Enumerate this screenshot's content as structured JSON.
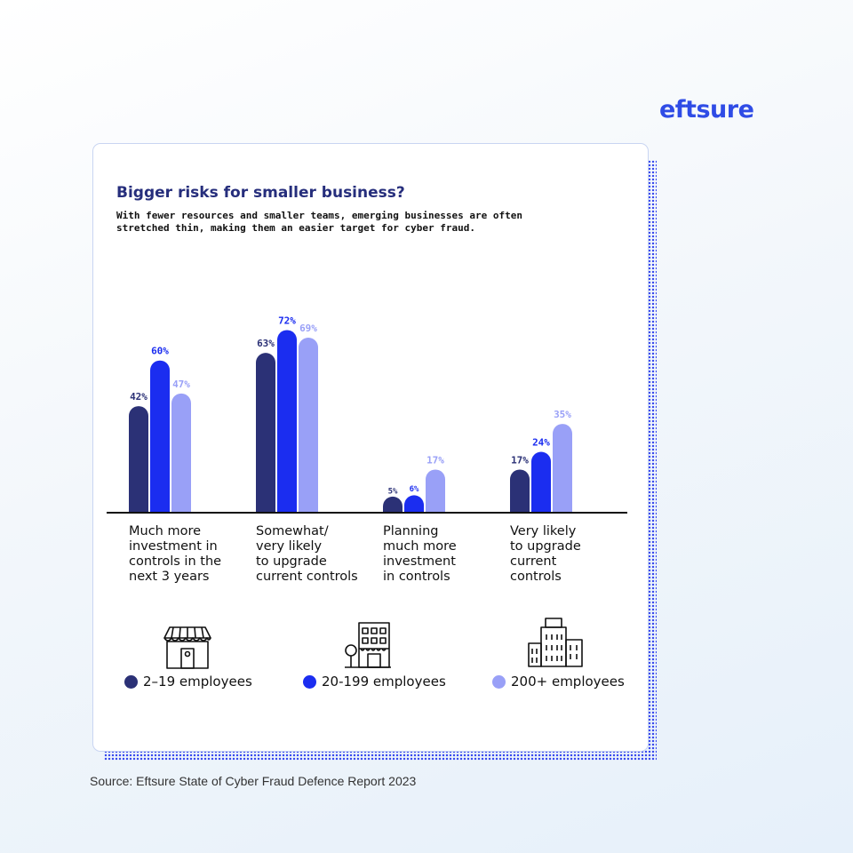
{
  "brand": {
    "name": "eftsure"
  },
  "colors": {
    "dark": "#2b3176",
    "mid": "#1b2df0",
    "light": "#99a0f7",
    "accent": "#2f4ce6"
  },
  "source": "Source: Eftsure State of Cyber Fraud Defence Report 2023",
  "chart_data": {
    "type": "bar",
    "title": "Bigger risks for smaller business?",
    "subtitle": "With fewer resources and smaller teams, emerging businesses are often stretched thin, making them an easier target for cyber fraud.",
    "categories": [
      "Much more investment in controls in the next 3 years",
      "Somewhat/ very likely to upgrade current controls",
      "Planning much more investment in controls",
      "Very likely to upgrade current controls"
    ],
    "category_lines": [
      [
        "Much more",
        "investment in",
        "controls in the",
        "next 3 years"
      ],
      [
        "Somewhat/",
        "very likely",
        "to upgrade",
        "current controls"
      ],
      [
        "Planning",
        "much more",
        "investment",
        "in controls"
      ],
      [
        "Very likely",
        "to upgrade",
        "current",
        "controls"
      ]
    ],
    "series": [
      {
        "name": "2–19 employees",
        "values": [
          42,
          63,
          5,
          17
        ],
        "color": "#2b3176",
        "icon": "shop-icon"
      },
      {
        "name": "20-199 employees",
        "values": [
          60,
          72,
          6,
          24
        ],
        "color": "#1b2df0",
        "icon": "office-icon"
      },
      {
        "name": "200+ employees",
        "values": [
          47,
          69,
          17,
          35
        ],
        "color": "#99a0f7",
        "icon": "skyscraper-icon"
      }
    ],
    "value_suffix": "%",
    "ylim": [
      0,
      80
    ],
    "grid": false,
    "legend_position": "bottom"
  }
}
